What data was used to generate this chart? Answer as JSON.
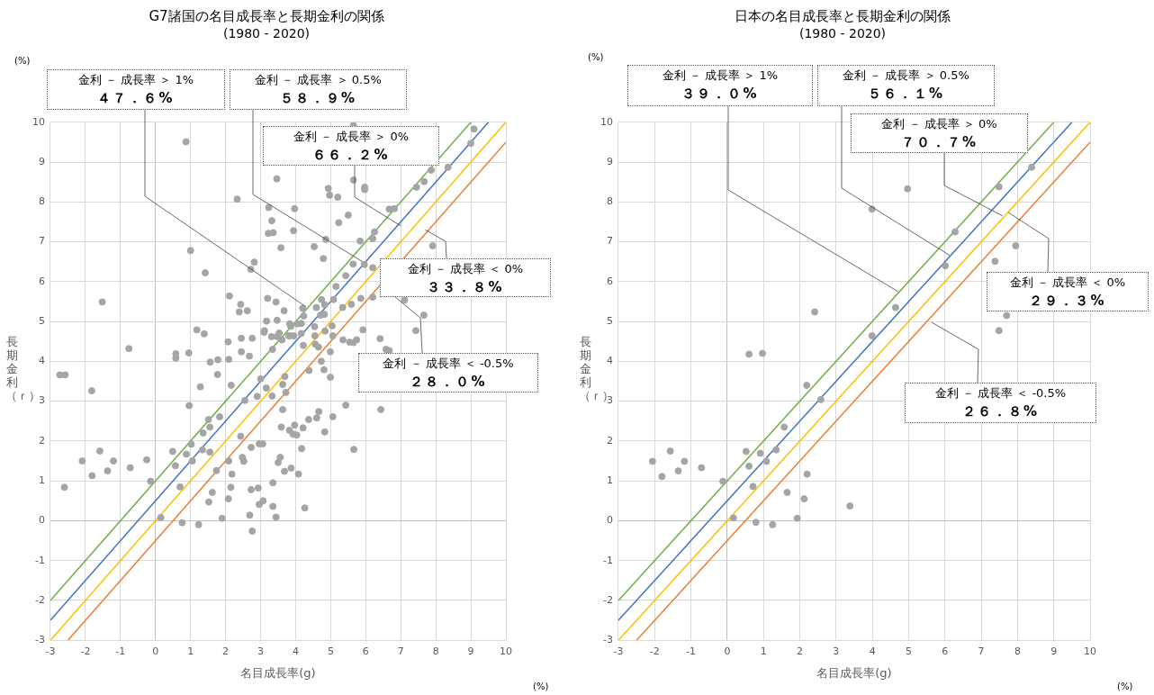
{
  "chart_data": [
    {
      "type": "scatter",
      "title": "G7諸国の名目成長率と長期金利の関係",
      "subtitle": "(1980 - 2020)",
      "xlabel": "名目成長率(g)",
      "ylabel": "長期金利（ｒ）",
      "xlim": [
        -3,
        10
      ],
      "ylim": [
        -3,
        10
      ],
      "xticks": [
        -3,
        -2,
        -1,
        0,
        1,
        2,
        3,
        4,
        5,
        6,
        7,
        8,
        9,
        10
      ],
      "yticks": [
        -3,
        -2,
        -1,
        0,
        1,
        2,
        3,
        4,
        5,
        6,
        7,
        8,
        9,
        10
      ],
      "grid": true,
      "annotations": [
        {
          "text": "金利 － 成長率 ＞ 1%\n４７．６%",
          "x": 4.29,
          "y": 5.37
        },
        {
          "text": "金利 － 成長率 ＞ 0.5%\n５８．９%",
          "x": 5.91,
          "y": 6.5
        },
        {
          "text": "金利 － 成長率 ＞ 0%\n６６．２%",
          "x": 7.0,
          "y": 7.4
        },
        {
          "text": "金利 － 成長率 ＜ 0%\n３３．８%",
          "x": 7.7,
          "y": 7.3
        },
        {
          "text": "金利 － 成長率 ＜ -0.5%\n２８．０%",
          "x": 6.42,
          "y": 5.92
        },
        "(%)",
        "(%)"
      ],
      "series": [
        {
          "type": "scatter",
          "marker": "circle",
          "color": "#a5a5a5",
          "x": [
            0.87,
            2.33,
            3.46,
            3.23,
            3.32,
            3.22,
            3.36,
            1.0,
            2.82,
            2.72,
            1.42,
            -1.52,
            2.11,
            2.43,
            2.39,
            2.62,
            3.2,
            3.44,
            3.17,
            3.11,
            3.1,
            3.47,
            1.18,
            1.39,
            2.07,
            2.45,
            2.76,
            3.31,
            3.34,
            -0.76,
            0.58,
            0.58,
            0.95,
            1.56,
            1.78,
            2.09,
            2.45,
            2.68,
            -2.73,
            -2.58,
            1.77,
            -1.82,
            -2.6,
            -2.09,
            -1.81,
            -1.59,
            -1.37,
            -1.2,
            -0.72,
            -0.25,
            -0.14,
            0.15,
            0.49,
            0.57,
            0.7,
            0.76,
            0.88,
            0.96,
            1.02,
            1.05,
            1.23,
            1.28,
            1.34,
            1.36,
            1.51,
            1.55,
            1.52,
            1.62,
            1.55,
            1.74,
            1.83,
            1.9,
            2.09,
            2.08,
            2.15,
            2.18,
            2.16,
            2.43,
            2.48,
            2.52,
            2.55,
            2.69,
            2.73,
            2.76,
            2.73,
            2.9,
            2.93,
            2.96,
            3.07,
            2.96,
            3.06,
            3.0,
            3.16,
            3.33,
            3.35,
            3.35,
            3.44,
            5.65,
            9.09,
            9.0,
            8.35,
            7.87,
            7.67,
            7.45,
            4.93,
            4.97,
            5.2,
            5.65,
            5.97,
            5.97,
            3.97,
            5.5,
            5.23,
            6.67,
            6.82,
            3.94,
            6.25,
            6.2,
            3.58,
            4.53,
            4.79,
            5.84,
            4.86,
            7.91,
            5.64,
            5.96,
            6.2,
            5.43,
            5.15,
            4.74,
            5.08,
            3.67,
            4.2,
            4.23,
            4.59,
            4.83,
            4.71,
            4.82,
            4.05,
            4.16,
            4.16,
            3.83,
            3.86,
            4.55,
            4.54,
            4.84,
            5.04,
            5.34,
            5.59,
            5.06,
            5.35,
            5.86,
            6.2,
            7.11,
            7.66,
            7.43,
            6.41,
            6.67,
            6.58,
            5.92,
            5.54,
            5.74,
            5.65,
            4.99,
            4.56,
            4.65,
            4.22,
            3.83,
            3.95,
            3.47,
            3.53,
            3.8,
            3.61,
            4.73,
            4.38,
            4.81,
            4.99,
            3.63,
            3.69,
            3.72,
            5.43,
            6.43,
            3.63,
            4.66,
            4.6,
            4.37,
            5.06,
            3.59,
            3.82,
            3.97,
            4.21,
            3.93,
            4.03,
            4.83,
            4.17,
            5.66,
            3.56,
            3.5,
            3.68,
            3.87,
            4.08,
            4.26
          ],
          "values": [
            9.51,
            8.07,
            8.58,
            7.86,
            7.53,
            7.21,
            7.23,
            6.78,
            6.49,
            6.31,
            6.22,
            5.49,
            5.64,
            5.43,
            5.24,
            5.27,
            5.58,
            5.49,
            5.01,
            4.77,
            4.73,
            5.03,
            4.79,
            4.69,
            4.49,
            4.58,
            4.58,
            4.62,
            4.3,
            4.32,
            4.19,
            4.08,
            4.21,
            3.98,
            4.04,
            4.05,
            4.24,
            4.13,
            3.66,
            3.66,
            3.67,
            3.26,
            0.84,
            1.5,
            1.13,
            1.75,
            1.25,
            1.5,
            1.33,
            1.53,
            0.99,
            0.08,
            1.74,
            1.38,
            0.85,
            -0.05,
            1.67,
            2.89,
            1.92,
            1.5,
            -0.1,
            3.36,
            1.78,
            2.2,
            2.54,
            2.35,
            0.47,
            0.71,
            1.72,
            1.26,
            2.61,
            0.06,
            1.5,
            0.55,
            0.84,
            1.17,
            3.4,
            2.12,
            1.59,
            1.49,
            3.02,
            0.14,
            0.78,
            -0.26,
            1.84,
            3.12,
            0.82,
            0.41,
            0.5,
            1.93,
            1.93,
            3.56,
            3.33,
            3.13,
            0.95,
            0.36,
            0.09,
            9.92,
            9.83,
            9.47,
            8.87,
            8.8,
            8.51,
            8.37,
            8.34,
            8.17,
            8.12,
            8.55,
            8.37,
            8.31,
            7.83,
            7.67,
            7.48,
            7.82,
            7.83,
            7.28,
            7.25,
            7.08,
            6.85,
            6.88,
            6.58,
            7.02,
            7.06,
            6.9,
            6.44,
            6.43,
            6.35,
            6.15,
            5.88,
            5.55,
            5.55,
            5.27,
            5.33,
            5.14,
            5.35,
            5.42,
            5.16,
            5.18,
            4.94,
            4.95,
            4.7,
            4.94,
            4.88,
            4.64,
            4.87,
            4.76,
            4.89,
            5.35,
            5.43,
            4.64,
            4.54,
            5.58,
            5.61,
            5.54,
            5.16,
            4.77,
            4.57,
            4.27,
            4.3,
            4.79,
            4.48,
            4.54,
            4.47,
            4.24,
            4.43,
            4.36,
            4.4,
            4.64,
            4.64,
            4.62,
            4.71,
            4.64,
            4.54,
            4.0,
            3.77,
            3.79,
            3.6,
            3.42,
            3.62,
            3.22,
            2.9,
            2.79,
            2.79,
            2.74,
            2.58,
            2.54,
            2.61,
            2.35,
            2.27,
            2.4,
            2.33,
            2.17,
            2.15,
            2.23,
            1.81,
            1.79,
            1.59,
            1.46,
            1.24,
            1.32,
            1.17,
            0.32
          ]
        },
        {
          "type": "line",
          "marker": "none",
          "color": "#70ad47",
          "x": [
            -3,
            9
          ],
          "values": [
            -2,
            10
          ]
        },
        {
          "type": "line",
          "marker": "none",
          "color": "#4472c4",
          "x": [
            -3,
            9.5
          ],
          "values": [
            -2.5,
            10
          ]
        },
        {
          "type": "line",
          "marker": "none",
          "color": "#ffc000",
          "x": [
            -3,
            10
          ],
          "values": [
            -3,
            10
          ]
        },
        {
          "type": "line",
          "marker": "none",
          "color": "#ed7d31",
          "x": [
            -2.5,
            10
          ],
          "values": [
            -3,
            9.5
          ]
        }
      ]
    },
    {
      "type": "scatter",
      "title": "日本の名目成長率と長期金利の関係",
      "subtitle": "(1980 - 2020)",
      "xlabel": "名目成長率(g)",
      "ylabel": "長期金利（ｒ）",
      "xlim": [
        -3,
        10
      ],
      "ylim": [
        -3,
        10
      ],
      "xticks": [
        -3,
        -2,
        -1,
        0,
        1,
        2,
        3,
        4,
        5,
        6,
        7,
        8,
        9,
        10
      ],
      "yticks": [
        -3,
        -2,
        -1,
        0,
        1,
        2,
        3,
        4,
        5,
        6,
        7,
        8,
        9,
        10
      ],
      "grid": true,
      "annotations": [
        {
          "text": "金利 － 成長率 ＞ 1%\n３９．０%",
          "x": 4.71,
          "y": 5.75
        },
        {
          "text": "金利 － 成長率 ＞ 0.5%\n５６．１%",
          "x": 6.13,
          "y": 6.66
        },
        {
          "text": "金利 － 成長率 ＞ 0%\n７０．７%",
          "x": 7.59,
          "y": 7.65
        },
        {
          "text": "金利 － 成長率 ＜ 0%\n２９．３%",
          "x": 7.74,
          "y": 7.74
        },
        {
          "text": "金利 － 成長率 ＜ -0.5%\n２６．８%",
          "x": 5.63,
          "y": 4.98
        },
        "(%)",
        "(%)"
      ],
      "series": [
        {
          "type": "scatter",
          "marker": "circle",
          "color": "#a5a5a5",
          "x": [
            -2.06,
            -1.8,
            -1.57,
            -1.35,
            -1.18,
            -0.71,
            -0.12,
            0.17,
            0.52,
            0.6,
            0.6,
            0.71,
            0.79,
            0.91,
            0.97,
            1.08,
            1.25,
            1.35,
            1.57,
            1.65,
            1.93,
            2.12,
            2.2,
            2.19,
            2.41,
            2.58,
            3.38,
            3.99,
            3.99,
            4.64,
            4.97,
            6.01,
            6.28,
            7.38,
            7.49,
            7.49,
            7.7,
            7.95,
            8.39
          ],
          "values": [
            1.49,
            1.11,
            1.75,
            1.25,
            1.49,
            1.33,
            0.99,
            0.07,
            1.74,
            1.37,
            4.18,
            0.86,
            -0.04,
            1.69,
            4.2,
            1.49,
            -0.1,
            1.78,
            2.35,
            0.71,
            0.06,
            0.55,
            1.17,
            3.4,
            5.24,
            3.04,
            0.37,
            7.82,
            4.64,
            5.35,
            8.33,
            6.4,
            7.25,
            6.51,
            8.38,
            4.77,
            5.15,
            6.9,
            8.87
          ]
        },
        {
          "type": "line",
          "marker": "none",
          "color": "#70ad47",
          "x": [
            -3,
            9
          ],
          "values": [
            -2,
            10
          ]
        },
        {
          "type": "line",
          "marker": "none",
          "color": "#4472c4",
          "x": [
            -3,
            9.5
          ],
          "values": [
            -2.5,
            10
          ]
        },
        {
          "type": "line",
          "marker": "none",
          "color": "#ffc000",
          "x": [
            -3,
            10
          ],
          "values": [
            -3,
            10
          ]
        },
        {
          "type": "line",
          "marker": "none",
          "color": "#ed7d31",
          "x": [
            -2.5,
            10
          ],
          "values": [
            -3,
            9.5
          ]
        }
      ]
    }
  ]
}
